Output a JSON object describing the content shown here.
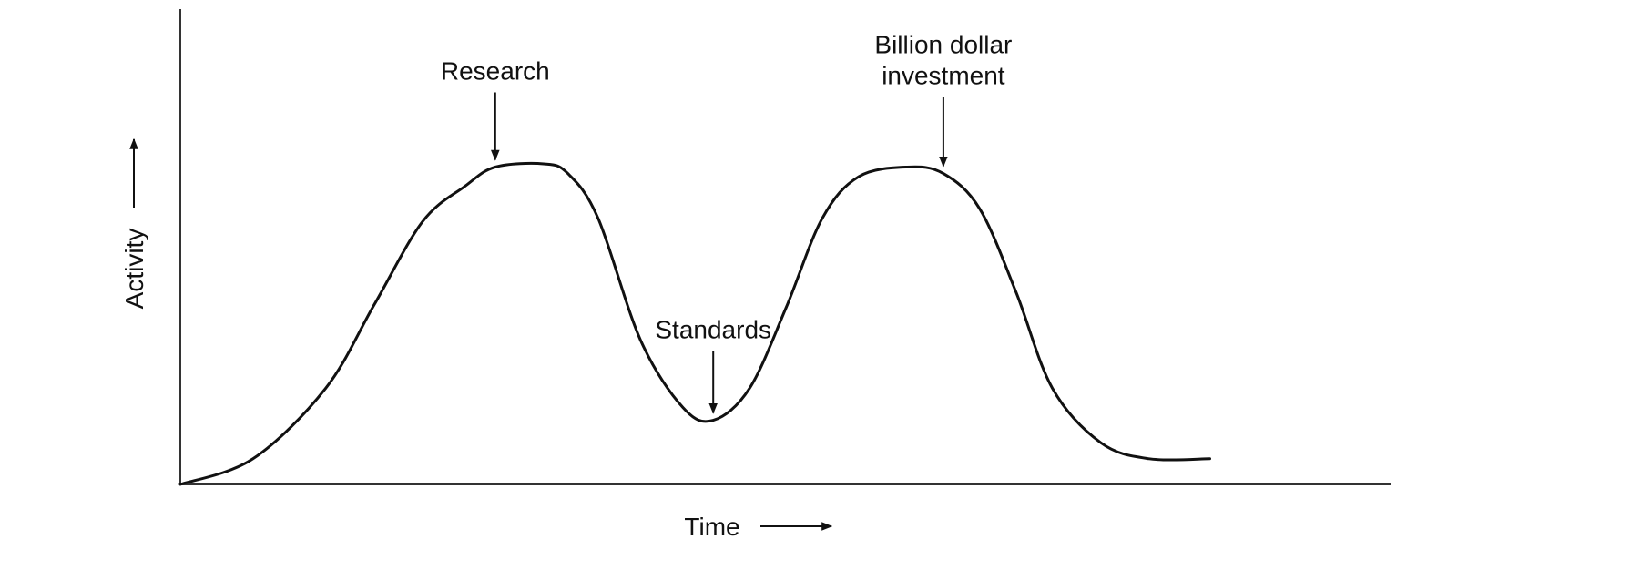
{
  "chart_data": {
    "type": "line",
    "title": "",
    "xlabel": "Time",
    "ylabel": "Activity",
    "xlim": [
      0,
      1
    ],
    "ylim": [
      0,
      1
    ],
    "grid": false,
    "legend": "none",
    "series": [
      {
        "values_x": [
          0.0,
          0.06,
          0.12,
          0.16,
          0.2,
          0.235,
          0.26,
          0.3,
          0.32,
          0.345,
          0.38,
          0.415,
          0.44,
          0.47,
          0.5,
          0.53,
          0.56,
          0.6,
          0.63,
          0.66,
          0.69,
          0.72,
          0.76,
          0.8,
          0.85
        ],
        "values_y": [
          0.0,
          0.08,
          0.3,
          0.56,
          0.82,
          0.93,
          0.99,
          1.0,
          0.97,
          0.83,
          0.45,
          0.24,
          0.2,
          0.3,
          0.55,
          0.83,
          0.96,
          0.99,
          0.97,
          0.86,
          0.6,
          0.3,
          0.13,
          0.08,
          0.08
        ]
      }
    ],
    "annotations": [
      {
        "text": "Research",
        "x": 0.26,
        "y": 0.99
      },
      {
        "text": "Standards",
        "x": 0.44,
        "y": 0.2
      },
      {
        "lines": [
          "Billion dollar",
          "investment"
        ],
        "x": 0.63,
        "y": 0.97
      }
    ],
    "colors": {
      "curve": "#111111",
      "axis": "#333333",
      "text": "#111111"
    }
  }
}
